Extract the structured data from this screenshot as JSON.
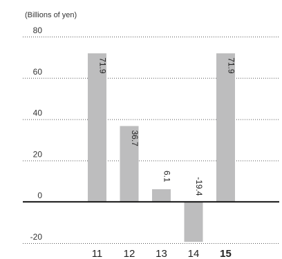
{
  "chart_data": {
    "type": "bar",
    "unit_label": "(Billions of yen)",
    "categories": [
      "11",
      "12",
      "13",
      "14",
      "15"
    ],
    "highlight_category": "15",
    "values": [
      71.9,
      36.7,
      6.1,
      -19.4,
      71.9
    ],
    "value_labels": [
      "71.9",
      "36.7",
      "6.1",
      "-19.4",
      "71.9"
    ],
    "y_ticks": [
      80,
      60,
      40,
      20,
      0,
      -20
    ],
    "y_tick_labels": [
      "80",
      "60",
      "40",
      "20",
      "0",
      "-20"
    ],
    "ylim": [
      -20,
      80
    ],
    "grid": true,
    "bar_color": "#bdbdbe",
    "title": "",
    "xlabel": "",
    "ylabel": ""
  }
}
